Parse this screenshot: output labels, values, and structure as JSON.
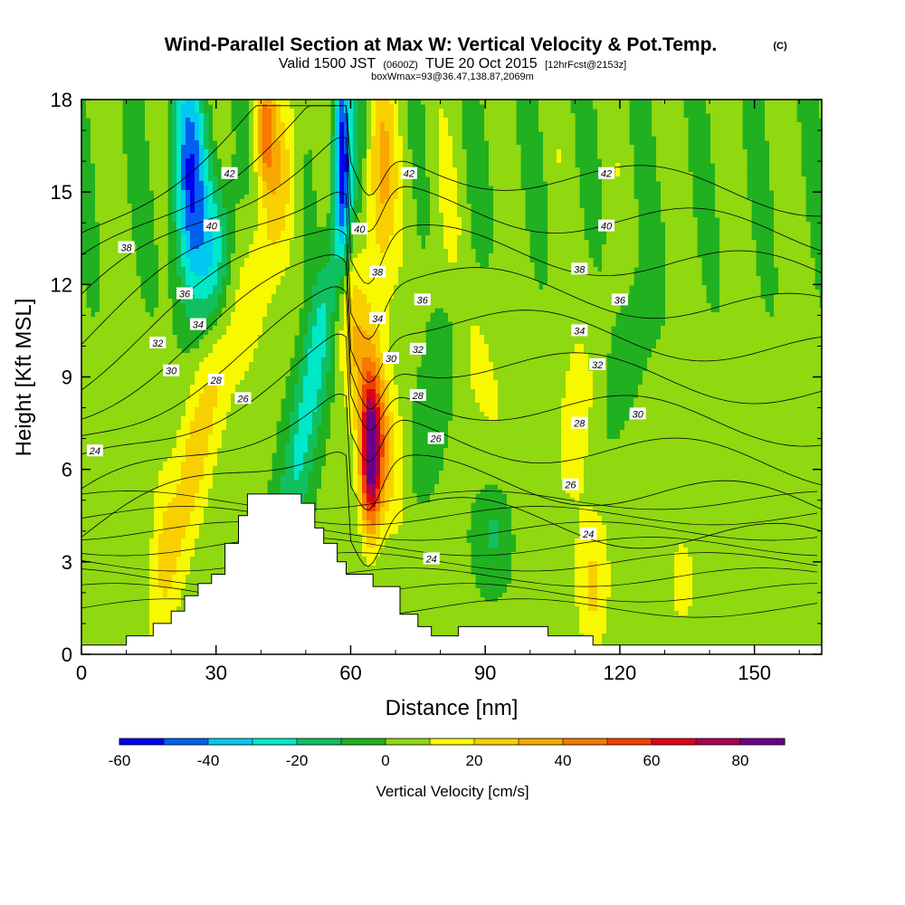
{
  "header": {
    "title": "Wind-Parallel Section at Max W: Vertical Velocity & Pot.Temp.",
    "copyright": "(C)",
    "valid_prefix": "Valid 1500 JST",
    "valid_z": "(0600Z)",
    "valid_date": "TUE 20 Oct 2015",
    "forecast": "[12hrFcst@2153z]",
    "box_info": "boxWmax=93@36.47,138.87,2069m"
  },
  "chart_data": {
    "type": "heatmap",
    "xlabel": "Distance [nm]",
    "ylabel": "Height [Kft MSL]",
    "xlim": [
      0,
      165
    ],
    "ylim": [
      0,
      18
    ],
    "x_ticks": [
      "0",
      "30",
      "60",
      "90",
      "120",
      "150"
    ],
    "x_tick_values": [
      0,
      30,
      60,
      90,
      120,
      150
    ],
    "y_ticks": [
      "0",
      "3",
      "6",
      "9",
      "12",
      "15",
      "18"
    ],
    "y_tick_values": [
      0,
      3,
      6,
      9,
      12,
      15,
      18
    ],
    "colorbar": {
      "label": "Vertical Velocity [cm/s]",
      "tick_labels": [
        "-60",
        "-40",
        "-20",
        "0",
        "20",
        "40",
        "60",
        "80"
      ],
      "tick_values": [
        -60,
        -40,
        -20,
        0,
        20,
        40,
        60,
        80
      ],
      "bounds": [
        -60,
        -50,
        -40,
        -30,
        -20,
        -10,
        0,
        10,
        20,
        30,
        40,
        50,
        60,
        70,
        80,
        90
      ],
      "colors": [
        "#0000f0",
        "#0060f0",
        "#00c8f0",
        "#00e8c8",
        "#10c060",
        "#20b020",
        "#90d810",
        "#f8f800",
        "#f8d000",
        "#f8a800",
        "#f87800",
        "#f04000",
        "#e00018",
        "#a80050",
        "#6a008a"
      ]
    },
    "terrain": [
      [
        0,
        0.3
      ],
      [
        10,
        0.3
      ],
      [
        10,
        0.6
      ],
      [
        16,
        0.6
      ],
      [
        16,
        1.0
      ],
      [
        20,
        1.0
      ],
      [
        20,
        1.4
      ],
      [
        23,
        1.4
      ],
      [
        23,
        1.9
      ],
      [
        26,
        1.9
      ],
      [
        26,
        2.3
      ],
      [
        29,
        2.3
      ],
      [
        29,
        2.6
      ],
      [
        32,
        2.6
      ],
      [
        32,
        3.6
      ],
      [
        35,
        3.6
      ],
      [
        35,
        4.5
      ],
      [
        37,
        4.5
      ],
      [
        37,
        5.2
      ],
      [
        40,
        5.2
      ],
      [
        40,
        5.2
      ],
      [
        49,
        5.2
      ],
      [
        49,
        4.9
      ],
      [
        52,
        4.9
      ],
      [
        52,
        4.1
      ],
      [
        54,
        4.1
      ],
      [
        54,
        3.6
      ],
      [
        57,
        3.6
      ],
      [
        57,
        3.0
      ],
      [
        59,
        3.0
      ],
      [
        59,
        2.6
      ],
      [
        65,
        2.6
      ],
      [
        65,
        2.2
      ],
      [
        71,
        2.2
      ],
      [
        71,
        1.3
      ],
      [
        75,
        1.3
      ],
      [
        75,
        0.9
      ],
      [
        78,
        0.9
      ],
      [
        78,
        0.6
      ],
      [
        84,
        0.6
      ],
      [
        84,
        0.9
      ],
      [
        104,
        0.9
      ],
      [
        104,
        0.6
      ],
      [
        114,
        0.6
      ],
      [
        114,
        0.3
      ],
      [
        165,
        0.3
      ]
    ],
    "theta_levels": [
      24,
      26,
      28,
      30,
      32,
      34,
      36,
      38,
      40,
      42
    ],
    "contour_labels": [
      {
        "text": "24",
        "x": 3,
        "y": 6.6
      },
      {
        "text": "26",
        "x": 36,
        "y": 8.3
      },
      {
        "text": "28",
        "x": 30,
        "y": 8.9
      },
      {
        "text": "30",
        "x": 20,
        "y": 9.2
      },
      {
        "text": "32",
        "x": 17,
        "y": 10.1
      },
      {
        "text": "34",
        "x": 26,
        "y": 10.7
      },
      {
        "text": "36",
        "x": 23,
        "y": 11.7
      },
      {
        "text": "38",
        "x": 10,
        "y": 13.2
      },
      {
        "text": "40",
        "x": 29,
        "y": 13.9
      },
      {
        "text": "42",
        "x": 33,
        "y": 15.6
      },
      {
        "text": "42",
        "x": 73,
        "y": 15.6
      },
      {
        "text": "40",
        "x": 62,
        "y": 13.8
      },
      {
        "text": "38",
        "x": 66,
        "y": 12.4
      },
      {
        "text": "36",
        "x": 76,
        "y": 11.5
      },
      {
        "text": "34",
        "x": 66,
        "y": 10.9
      },
      {
        "text": "32",
        "x": 75,
        "y": 9.9
      },
      {
        "text": "30",
        "x": 69,
        "y": 9.6
      },
      {
        "text": "28",
        "x": 75,
        "y": 8.4
      },
      {
        "text": "26",
        "x": 79,
        "y": 7.0
      },
      {
        "text": "24",
        "x": 78,
        "y": 3.1
      },
      {
        "text": "42",
        "x": 117,
        "y": 15.6
      },
      {
        "text": "40",
        "x": 117,
        "y": 13.9
      },
      {
        "text": "38",
        "x": 111,
        "y": 12.5
      },
      {
        "text": "36",
        "x": 120,
        "y": 11.5
      },
      {
        "text": "34",
        "x": 111,
        "y": 10.5
      },
      {
        "text": "32",
        "x": 115,
        "y": 9.4
      },
      {
        "text": "30",
        "x": 124,
        "y": 7.8
      },
      {
        "text": "28",
        "x": 111,
        "y": 7.5
      },
      {
        "text": "26",
        "x": 109,
        "y": 5.5
      },
      {
        "text": "24",
        "x": 113,
        "y": 3.9
      }
    ]
  }
}
